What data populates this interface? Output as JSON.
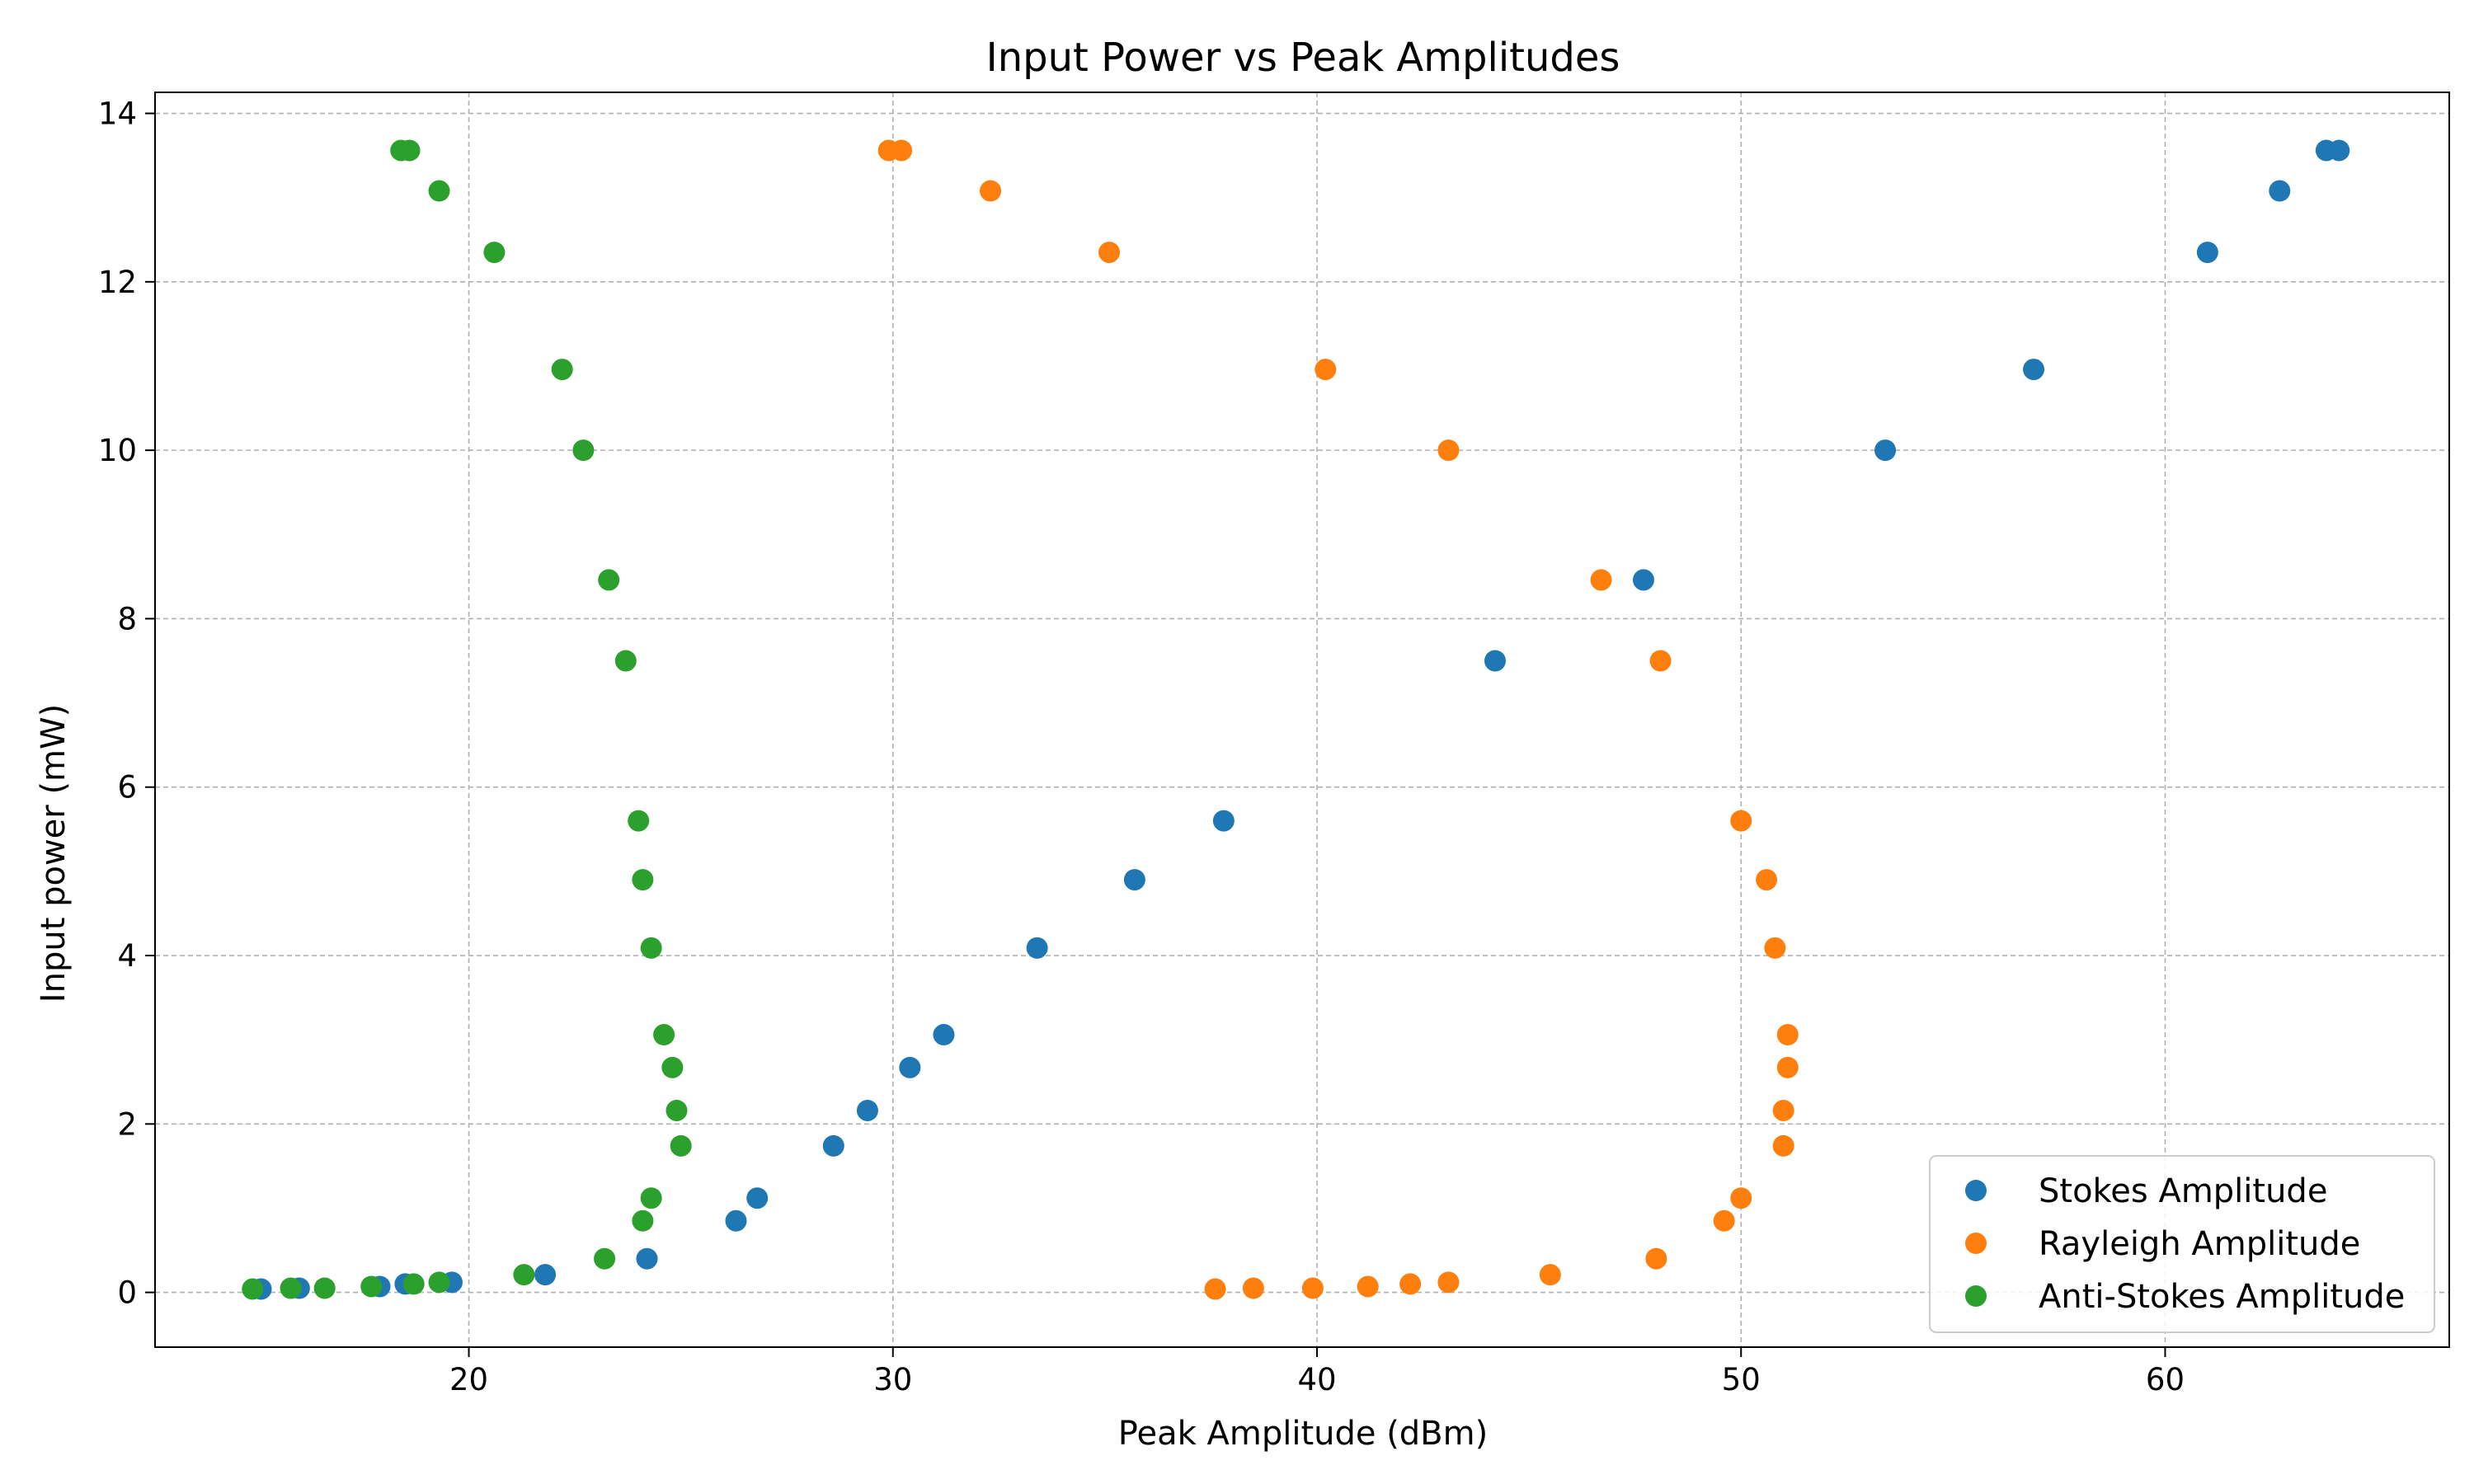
{
  "chart_data": {
    "type": "scatter",
    "title": "Input Power vs Peak Amplitudes",
    "xlabel": "Peak Amplitude (dBm)",
    "ylabel": "Input power (mW)",
    "xlim": [
      12.6,
      66.7
    ],
    "ylim": [
      -0.65,
      14.25
    ],
    "xticks": [
      20,
      30,
      40,
      50,
      60
    ],
    "yticks": [
      0,
      2,
      4,
      6,
      8,
      10,
      12,
      14
    ],
    "grid": true,
    "legend_position": "lower-right",
    "series": [
      {
        "name": "Stokes Amplitude",
        "color": "#1f77b4",
        "points": [
          [
            15.1,
            0.04
          ],
          [
            16.0,
            0.05
          ],
          [
            17.9,
            0.07
          ],
          [
            18.5,
            0.1
          ],
          [
            19.6,
            0.12
          ],
          [
            21.8,
            0.21
          ],
          [
            24.2,
            0.4
          ],
          [
            26.3,
            0.85
          ],
          [
            26.8,
            1.12
          ],
          [
            28.6,
            1.74
          ],
          [
            29.4,
            2.16
          ],
          [
            30.4,
            2.67
          ],
          [
            31.2,
            3.06
          ],
          [
            33.4,
            4.09
          ],
          [
            35.7,
            4.9
          ],
          [
            37.8,
            5.6
          ],
          [
            44.2,
            7.5
          ],
          [
            47.7,
            8.46
          ],
          [
            53.4,
            10.0
          ],
          [
            56.9,
            10.96
          ],
          [
            61.0,
            12.35
          ],
          [
            62.7,
            13.08
          ],
          [
            63.8,
            13.56
          ],
          [
            64.1,
            13.56
          ]
        ]
      },
      {
        "name": "Rayleigh Amplitude",
        "color": "#ff7f0e",
        "points": [
          [
            37.6,
            0.04
          ],
          [
            38.5,
            0.05
          ],
          [
            39.9,
            0.05
          ],
          [
            41.2,
            0.07
          ],
          [
            42.2,
            0.1
          ],
          [
            43.1,
            0.12
          ],
          [
            45.5,
            0.21
          ],
          [
            48.0,
            0.4
          ],
          [
            49.6,
            0.85
          ],
          [
            50.0,
            1.12
          ],
          [
            51.0,
            1.74
          ],
          [
            51.0,
            2.16
          ],
          [
            51.1,
            2.67
          ],
          [
            51.1,
            3.06
          ],
          [
            50.8,
            4.09
          ],
          [
            50.6,
            4.9
          ],
          [
            50.0,
            5.6
          ],
          [
            48.1,
            7.5
          ],
          [
            46.7,
            8.46
          ],
          [
            43.1,
            10.0
          ],
          [
            40.2,
            10.96
          ],
          [
            35.1,
            12.35
          ],
          [
            32.3,
            13.08
          ],
          [
            29.9,
            13.56
          ],
          [
            30.2,
            13.56
          ]
        ]
      },
      {
        "name": "Anti-Stokes Amplitude",
        "color": "#2ca02c",
        "points": [
          [
            14.9,
            0.04
          ],
          [
            15.8,
            0.05
          ],
          [
            16.6,
            0.05
          ],
          [
            17.7,
            0.07
          ],
          [
            18.7,
            0.1
          ],
          [
            19.3,
            0.12
          ],
          [
            21.3,
            0.21
          ],
          [
            23.2,
            0.4
          ],
          [
            24.1,
            0.85
          ],
          [
            24.3,
            1.12
          ],
          [
            25.0,
            1.74
          ],
          [
            24.9,
            2.16
          ],
          [
            24.8,
            2.67
          ],
          [
            24.6,
            3.06
          ],
          [
            24.3,
            4.09
          ],
          [
            24.1,
            4.9
          ],
          [
            24.0,
            5.6
          ],
          [
            23.7,
            7.5
          ],
          [
            23.3,
            8.46
          ],
          [
            22.7,
            10.0
          ],
          [
            22.2,
            10.96
          ],
          [
            20.6,
            12.35
          ],
          [
            19.3,
            13.08
          ],
          [
            18.4,
            13.56
          ],
          [
            18.6,
            13.56
          ]
        ]
      }
    ]
  }
}
